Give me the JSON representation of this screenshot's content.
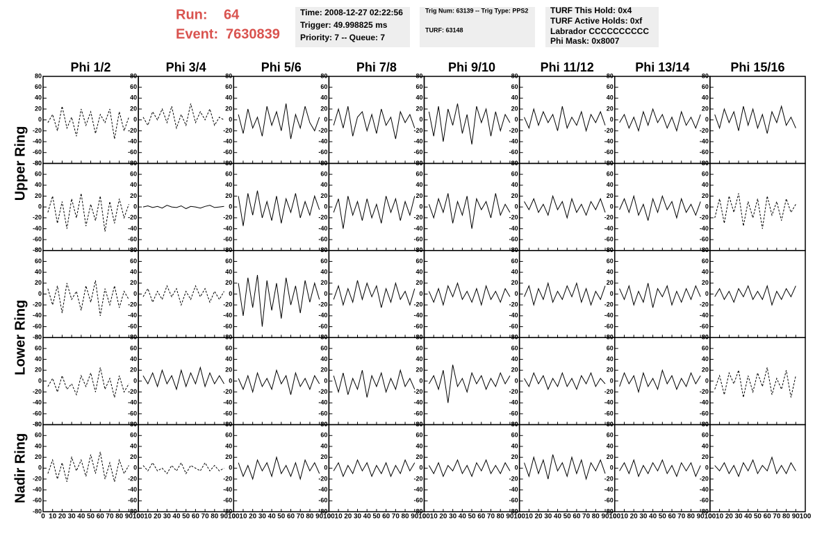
{
  "header": {
    "run_label": "Run:",
    "run": "64",
    "event_label": "Event:",
    "event": "7630839",
    "box1": [
      "Time: 2008-12-27 02:22:56",
      "Trigger: 49.998825 ms",
      "Priority: 7 -- Queue: 7"
    ],
    "box2": [
      "Trig Num: 63139 -- Trig Type: PPS2",
      "TURF: 63148"
    ],
    "box3": [
      "TURF This Hold: 0x4",
      "TURF Active Holds: 0xf",
      "Labrador CCCCCCCCCC",
      "Phi Mask: 0x8007"
    ]
  },
  "chart_data": {
    "type": "line",
    "color": "#000000",
    "grid": false,
    "columns": [
      "Phi 1/2",
      "Phi 3/4",
      "Phi 5/6",
      "Phi 7/8",
      "Phi 9/10",
      "Phi 11/12",
      "Phi 13/14",
      "Phi 15/16"
    ],
    "row_labels": [
      "Upper Ring",
      "Lower Ring",
      "Nadir Ring"
    ],
    "xlim": [
      0,
      100
    ],
    "ylim": [
      -80,
      80
    ],
    "xticks": [
      0,
      10,
      20,
      30,
      40,
      50,
      60,
      70,
      80,
      90,
      100
    ],
    "yticks": [
      -80,
      -60,
      -40,
      -20,
      0,
      20,
      40,
      60,
      80
    ],
    "x": [
      5,
      10,
      15,
      20,
      25,
      30,
      35,
      40,
      45,
      50,
      55,
      60,
      65,
      70,
      75,
      80,
      85,
      90
    ],
    "panels": [
      [
        {
          "dashed": true,
          "values": [
            -5,
            10,
            -20,
            25,
            -15,
            5,
            -30,
            20,
            -10,
            15,
            -25,
            10,
            -5,
            20,
            -35,
            15,
            -20,
            5
          ]
        },
        {
          "dashed": true,
          "values": [
            5,
            -10,
            15,
            0,
            20,
            -5,
            25,
            -15,
            10,
            -10,
            30,
            -5,
            15,
            0,
            20,
            -10,
            5,
            0
          ]
        },
        {
          "dashed": false,
          "values": [
            10,
            -25,
            20,
            -15,
            5,
            -30,
            25,
            -10,
            15,
            -20,
            30,
            -35,
            10,
            -15,
            25,
            -5,
            -20,
            5
          ]
        },
        {
          "dashed": false,
          "values": [
            -10,
            20,
            -15,
            25,
            -30,
            5,
            15,
            -20,
            10,
            -25,
            20,
            -10,
            5,
            -35,
            15,
            -5,
            10,
            -15
          ]
        },
        {
          "dashed": false,
          "values": [
            15,
            -30,
            25,
            -40,
            20,
            -10,
            30,
            -25,
            10,
            -45,
            25,
            -5,
            20,
            -30,
            15,
            -20,
            10,
            -5
          ]
        },
        {
          "dashed": false,
          "values": [
            5,
            -15,
            20,
            -10,
            15,
            -5,
            10,
            -20,
            25,
            -15,
            5,
            -10,
            15,
            -20,
            10,
            -5,
            15,
            -10
          ]
        },
        {
          "dashed": false,
          "values": [
            -5,
            10,
            -15,
            5,
            -20,
            15,
            -10,
            20,
            -5,
            10,
            -15,
            5,
            -20,
            15,
            -10,
            5,
            -15,
            10
          ]
        },
        {
          "dashed": false,
          "values": [
            10,
            -15,
            20,
            -5,
            15,
            -20,
            25,
            -10,
            20,
            -15,
            10,
            -25,
            15,
            -5,
            25,
            -10,
            5,
            -15
          ]
        }
      ],
      [
        {
          "dashed": true,
          "values": [
            -10,
            20,
            -30,
            10,
            -40,
            15,
            -20,
            25,
            -35,
            5,
            -25,
            20,
            -45,
            10,
            -30,
            15,
            -20,
            5
          ]
        },
        {
          "dashed": false,
          "values": [
            0,
            2,
            -1,
            1,
            -2,
            3,
            0,
            -1,
            2,
            -3,
            1,
            0,
            -2,
            1,
            3,
            -1,
            0,
            1
          ]
        },
        {
          "dashed": false,
          "values": [
            20,
            -35,
            25,
            -15,
            30,
            -20,
            10,
            -25,
            20,
            -30,
            15,
            -10,
            25,
            -20,
            10,
            -15,
            20,
            -5
          ]
        },
        {
          "dashed": false,
          "values": [
            -10,
            15,
            -40,
            20,
            -15,
            10,
            -25,
            15,
            -20,
            5,
            -30,
            20,
            -10,
            15,
            -25,
            10,
            -15,
            20
          ]
        },
        {
          "dashed": false,
          "values": [
            5,
            -20,
            15,
            -10,
            25,
            -30,
            10,
            -15,
            20,
            -40,
            15,
            -5,
            10,
            -20,
            25,
            -15,
            5,
            -10
          ]
        },
        {
          "dashed": false,
          "values": [
            10,
            -5,
            15,
            -10,
            5,
            -15,
            20,
            -5,
            10,
            -20,
            15,
            -10,
            5,
            -15,
            10,
            -5,
            15,
            -10
          ]
        },
        {
          "dashed": false,
          "values": [
            -5,
            15,
            -10,
            20,
            -15,
            5,
            -25,
            15,
            -10,
            20,
            -5,
            10,
            -20,
            15,
            -10,
            5,
            -15,
            10
          ]
        },
        {
          "dashed": true,
          "values": [
            -20,
            15,
            -30,
            20,
            -10,
            25,
            -35,
            10,
            -20,
            15,
            -40,
            20,
            -15,
            10,
            -25,
            15,
            -10,
            5
          ]
        }
      ],
      [
        {
          "dashed": true,
          "values": [
            10,
            -20,
            15,
            -35,
            20,
            -10,
            5,
            -30,
            15,
            -15,
            25,
            -40,
            10,
            -20,
            15,
            -25,
            5,
            -10
          ]
        },
        {
          "dashed": true,
          "values": [
            -5,
            10,
            -15,
            5,
            -10,
            15,
            -5,
            10,
            -20,
            5,
            -10,
            15,
            -5,
            10,
            -15,
            5,
            -10,
            5
          ]
        },
        {
          "dashed": false,
          "values": [
            20,
            -40,
            30,
            -25,
            35,
            -60,
            25,
            -30,
            20,
            -45,
            30,
            -20,
            15,
            -35,
            25,
            -15,
            20,
            -10
          ]
        },
        {
          "dashed": false,
          "values": [
            -10,
            15,
            -20,
            10,
            -15,
            25,
            -10,
            20,
            -5,
            15,
            -25,
            10,
            -15,
            20,
            -10,
            5,
            -20,
            10
          ]
        },
        {
          "dashed": false,
          "values": [
            5,
            -15,
            10,
            -20,
            15,
            -5,
            20,
            -10,
            5,
            -15,
            10,
            -20,
            15,
            -10,
            5,
            -15,
            10,
            -5
          ]
        },
        {
          "dashed": false,
          "values": [
            -5,
            15,
            -20,
            10,
            -10,
            20,
            -15,
            5,
            -10,
            15,
            -5,
            20,
            -15,
            10,
            -20,
            5,
            -10,
            15
          ]
        },
        {
          "dashed": false,
          "values": [
            10,
            -10,
            15,
            -20,
            5,
            -15,
            20,
            -25,
            10,
            -5,
            15,
            -20,
            5,
            -15,
            10,
            -10,
            15,
            -5
          ]
        },
        {
          "dashed": false,
          "values": [
            -5,
            10,
            -10,
            5,
            -15,
            10,
            -5,
            15,
            -10,
            5,
            -10,
            15,
            -20,
            5,
            -10,
            10,
            -5,
            15
          ]
        }
      ],
      [
        {
          "dashed": true,
          "values": [
            -10,
            5,
            -20,
            10,
            -15,
            -5,
            -25,
            10,
            -10,
            15,
            -20,
            25,
            -15,
            5,
            -30,
            10,
            -20,
            -5
          ]
        },
        {
          "dashed": false,
          "values": [
            10,
            -5,
            15,
            -10,
            20,
            -5,
            10,
            -15,
            20,
            -10,
            15,
            -5,
            25,
            -10,
            15,
            -5,
            10,
            -5
          ]
        },
        {
          "dashed": false,
          "values": [
            5,
            -15,
            10,
            -20,
            15,
            -10,
            5,
            -15,
            20,
            -5,
            10,
            -25,
            15,
            -10,
            5,
            -15,
            10,
            -5
          ]
        },
        {
          "dashed": false,
          "values": [
            10,
            -20,
            15,
            -25,
            5,
            -15,
            20,
            -30,
            10,
            -10,
            15,
            -20,
            5,
            -15,
            20,
            -10,
            5,
            -15
          ]
        },
        {
          "dashed": false,
          "values": [
            -5,
            10,
            -15,
            20,
            -40,
            30,
            -10,
            5,
            -20,
            15,
            -5,
            10,
            -15,
            5,
            -10,
            15,
            -5,
            10
          ]
        },
        {
          "dashed": false,
          "values": [
            5,
            -10,
            15,
            -5,
            10,
            -15,
            5,
            -10,
            15,
            -10,
            5,
            -15,
            10,
            -5,
            15,
            -10,
            5,
            -5
          ]
        },
        {
          "dashed": false,
          "values": [
            -10,
            15,
            -5,
            10,
            -20,
            15,
            -10,
            5,
            -15,
            20,
            -5,
            10,
            -15,
            5,
            -10,
            15,
            -5,
            10
          ]
        },
        {
          "dashed": true,
          "values": [
            -15,
            10,
            -25,
            15,
            -5,
            20,
            -30,
            10,
            -20,
            15,
            -10,
            25,
            -25,
            5,
            -15,
            20,
            -30,
            10
          ]
        }
      ],
      [
        {
          "dashed": true,
          "values": [
            -10,
            15,
            -20,
            10,
            -25,
            20,
            -5,
            15,
            -15,
            25,
            -10,
            30,
            -20,
            10,
            -25,
            15,
            -10,
            5
          ]
        },
        {
          "dashed": true,
          "values": [
            5,
            -5,
            10,
            -5,
            0,
            -10,
            5,
            -5,
            10,
            -10,
            5,
            0,
            -5,
            10,
            -5,
            5,
            -5,
            0
          ]
        },
        {
          "dashed": false,
          "values": [
            10,
            -15,
            5,
            -20,
            15,
            -5,
            10,
            -15,
            20,
            -10,
            5,
            -15,
            10,
            -20,
            15,
            -5,
            10,
            -10
          ]
        },
        {
          "dashed": false,
          "values": [
            -5,
            10,
            -15,
            5,
            -10,
            15,
            -5,
            10,
            -15,
            5,
            -10,
            10,
            -15,
            5,
            -10,
            15,
            -5,
            10
          ]
        },
        {
          "dashed": false,
          "values": [
            5,
            -10,
            10,
            -15,
            5,
            -5,
            15,
            -10,
            5,
            -15,
            10,
            -5,
            15,
            -10,
            5,
            -10,
            10,
            -5
          ]
        },
        {
          "dashed": false,
          "values": [
            10,
            -15,
            20,
            -10,
            15,
            -20,
            25,
            -5,
            10,
            -15,
            20,
            -10,
            15,
            -20,
            10,
            -5,
            15,
            -10
          ]
        },
        {
          "dashed": false,
          "values": [
            -5,
            10,
            -10,
            15,
            -15,
            5,
            -10,
            10,
            -5,
            15,
            -10,
            5,
            -15,
            10,
            -5,
            10,
            -15,
            5
          ]
        },
        {
          "dashed": false,
          "values": [
            5,
            -5,
            10,
            -10,
            5,
            -15,
            10,
            -5,
            15,
            -10,
            5,
            -5,
            20,
            -10,
            5,
            -10,
            10,
            -5
          ]
        }
      ]
    ]
  }
}
